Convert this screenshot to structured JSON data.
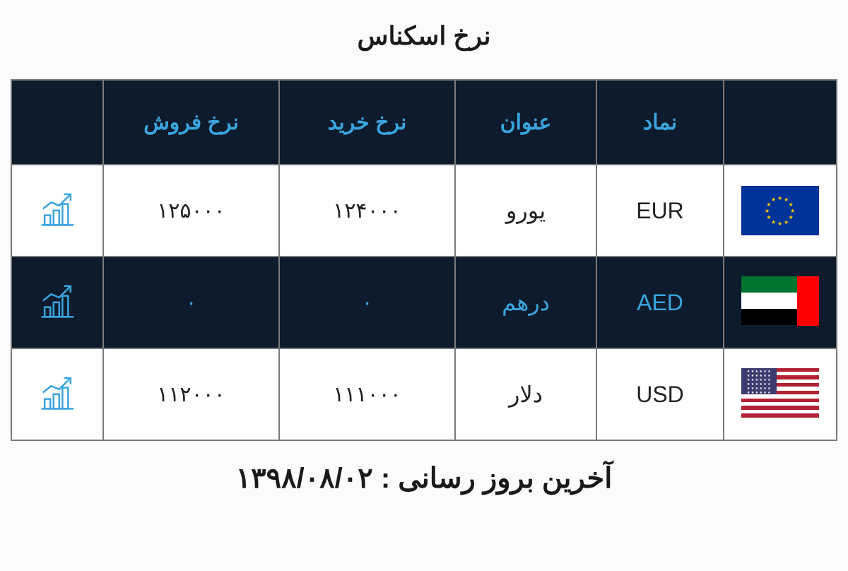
{
  "page": {
    "title": "نرخ اسکناس",
    "last_update_label": "آخرین بروز رسانی :",
    "last_update_value": "۱۳۹۸/۰۸/۰۲"
  },
  "table": {
    "headers": {
      "flag": "",
      "symbol": "نماد",
      "title": "عنوان",
      "buy": "نرخ خرید",
      "sell": "نرخ فروش",
      "chart": ""
    },
    "rows": [
      {
        "flag": "eu",
        "symbol": "EUR",
        "title": "یورو",
        "buy": "۱۲۴۰۰۰",
        "sell": "۱۲۵۰۰۰",
        "variant": "light"
      },
      {
        "flag": "uae",
        "symbol": "AED",
        "title": "درهم",
        "buy": "۰",
        "sell": "۰",
        "variant": "dark"
      },
      {
        "flag": "usa",
        "symbol": "USD",
        "title": "دلار",
        "buy": "۱۱۱۰۰۰",
        "sell": "۱۱۲۰۰۰",
        "variant": "light"
      }
    ]
  },
  "style": {
    "header_bg": "#0e1b2c",
    "header_fg": "#3aa5e0",
    "row_light_bg": "#ffffff",
    "row_light_fg": "#222222",
    "row_dark_bg": "#0e1b2c",
    "row_dark_fg": "#3aa5e0",
    "border_color": "#7a7a7a",
    "page_bg": "#fbfbfb",
    "accent": "#3aa5e0"
  }
}
